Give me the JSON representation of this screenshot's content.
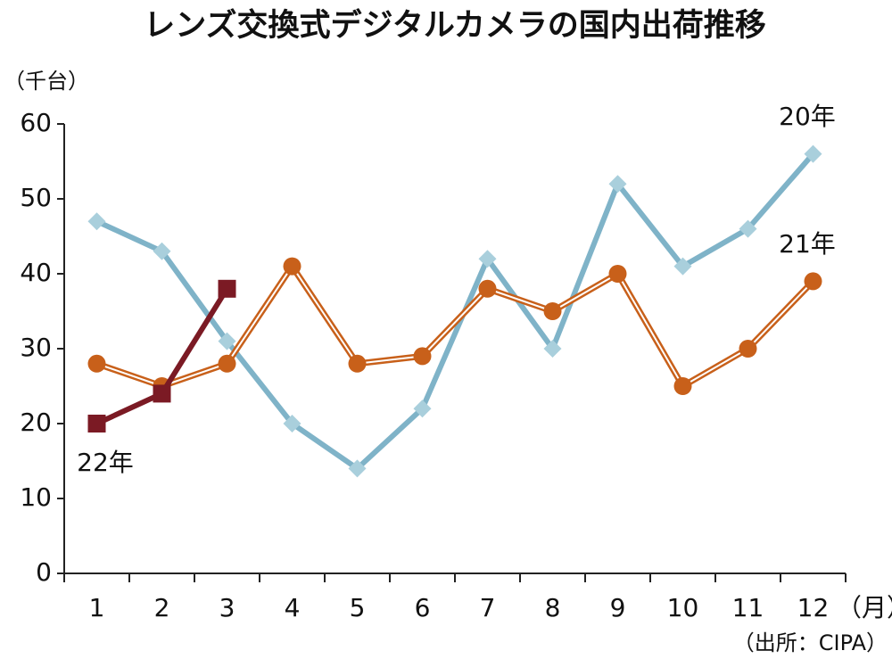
{
  "chart_data": {
    "type": "line",
    "title": "レンズ交換式デジタルカメラの国内出荷推移",
    "y_label": "（千台）",
    "x_label": "（月）",
    "source": "（出所：CIPA）",
    "categories": [
      "1",
      "2",
      "3",
      "4",
      "5",
      "6",
      "7",
      "8",
      "9",
      "10",
      "11",
      "12"
    ],
    "series": [
      {
        "name": "20年",
        "color": "#7fb3c8",
        "marker_color": "#a9cfdc",
        "marker": "diamond",
        "line_style": "single",
        "values": [
          47,
          43,
          31,
          20,
          14,
          22,
          42,
          30,
          52,
          41,
          46,
          56
        ]
      },
      {
        "name": "21年",
        "color": "#c8601a",
        "marker_color": "#c8601a",
        "marker": "circle",
        "line_style": "double",
        "values": [
          28,
          25,
          28,
          41,
          28,
          29,
          38,
          35,
          40,
          25,
          30,
          39
        ]
      },
      {
        "name": "22年",
        "color": "#7b1a24",
        "marker_color": "#7b1a24",
        "marker": "square",
        "line_style": "single",
        "values": [
          20,
          24,
          38,
          null,
          null,
          null,
          null,
          null,
          null,
          null,
          null,
          null
        ]
      }
    ],
    "ylim": [
      0,
      60
    ],
    "yticks": [
      0,
      10,
      20,
      30,
      40,
      50,
      60
    ],
    "grid": false
  }
}
